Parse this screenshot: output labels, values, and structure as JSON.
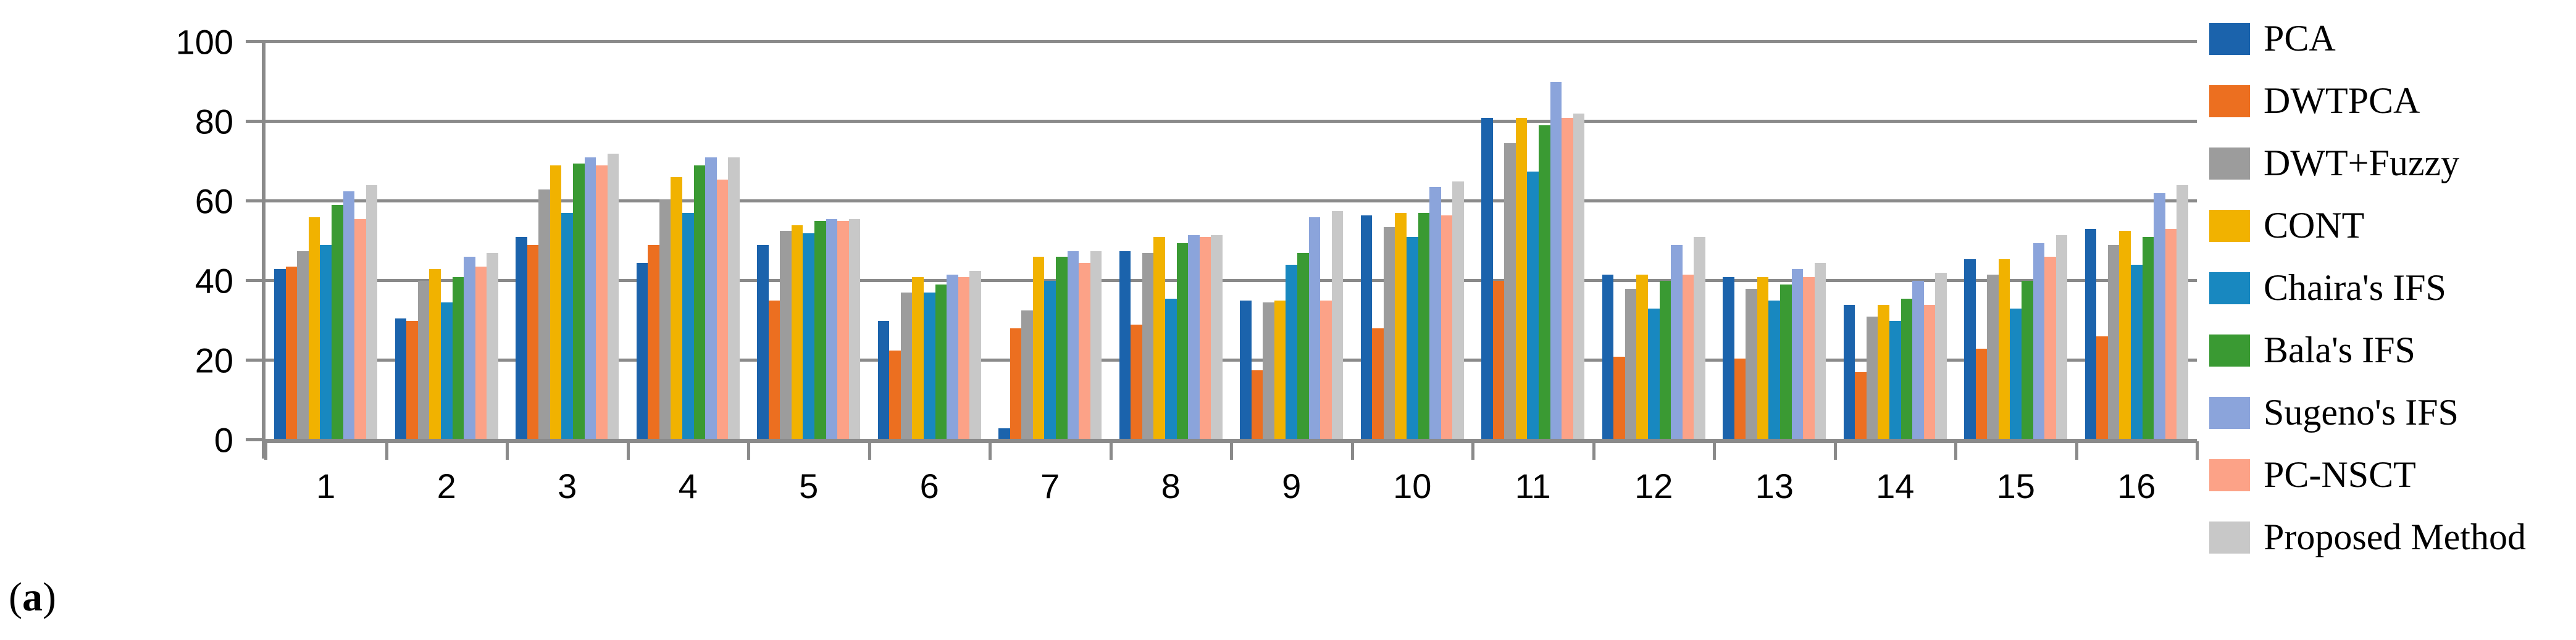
{
  "chart_data": {
    "type": "bar",
    "title": "",
    "xlabel": "",
    "ylabel": "",
    "categories": [
      "1",
      "2",
      "3",
      "4",
      "5",
      "6",
      "7",
      "8",
      "9",
      "10",
      "11",
      "12",
      "13",
      "14",
      "15",
      "16"
    ],
    "series": [
      {
        "name": "PCA",
        "color": "#1b63ac",
        "values": [
          43,
          30.5,
          51,
          44.5,
          49,
          30,
          3,
          47.5,
          35,
          56.5,
          81,
          41.5,
          41,
          34,
          45.5,
          53
        ]
      },
      {
        "name": "DWTPCA",
        "color": "#ec6f20",
        "values": [
          43.5,
          30,
          49,
          49,
          35,
          22.5,
          28,
          29,
          17.5,
          28,
          40,
          21,
          20.5,
          17,
          23,
          26
        ]
      },
      {
        "name": "DWT+Fuzzy",
        "color": "#9c9c9c",
        "values": [
          47.5,
          40,
          63,
          60.5,
          52.5,
          37,
          32.5,
          47,
          34.5,
          53.5,
          74.5,
          38,
          38,
          31,
          41.5,
          49
        ]
      },
      {
        "name": "CONT",
        "color": "#f1b200",
        "values": [
          56,
          43,
          69,
          66,
          54,
          41,
          46,
          51,
          35,
          57,
          81,
          41.5,
          41,
          34,
          45.5,
          52.5
        ]
      },
      {
        "name": "Chaira's IFS",
        "color": "#1888c0",
        "values": [
          49,
          34.5,
          57,
          57,
          52,
          37,
          40,
          35.5,
          44,
          51,
          67.5,
          33,
          35,
          30,
          33,
          44
        ]
      },
      {
        "name": "Bala's IFS",
        "color": "#3a9a33",
        "values": [
          59,
          41,
          69.5,
          69,
          55,
          39,
          46,
          49.5,
          47,
          57,
          79,
          40,
          39,
          35.5,
          40,
          51
        ]
      },
      {
        "name": "Sugeno's IFS",
        "color": "#8ba4db",
        "values": [
          62.5,
          46,
          71,
          71,
          55.5,
          41.5,
          47.5,
          51.5,
          56,
          63.5,
          90,
          49,
          43,
          40,
          49.5,
          62
        ]
      },
      {
        "name": "PC-NSCT",
        "color": "#fca287",
        "values": [
          55.5,
          43.5,
          69,
          65.5,
          55,
          41,
          44.5,
          51,
          35,
          56.5,
          81,
          41.5,
          41,
          34,
          46,
          53
        ]
      },
      {
        "name": "Proposed Method",
        "color": "#c8c8c8",
        "values": [
          64,
          47,
          72,
          71,
          55.5,
          42.5,
          47.5,
          51.5,
          57.5,
          65,
          82,
          51,
          44.5,
          42,
          51.5,
          64
        ]
      }
    ],
    "ylim": [
      0,
      100
    ],
    "yticks": [
      0,
      20,
      40,
      60,
      80,
      100
    ],
    "grid": true,
    "legend_position": "right"
  },
  "caption": {
    "open": "(",
    "letter": "a",
    "close": ")"
  },
  "style_colors": {
    "axis": "#8a8a8a",
    "text": "#000000",
    "background": "#ffffff"
  }
}
